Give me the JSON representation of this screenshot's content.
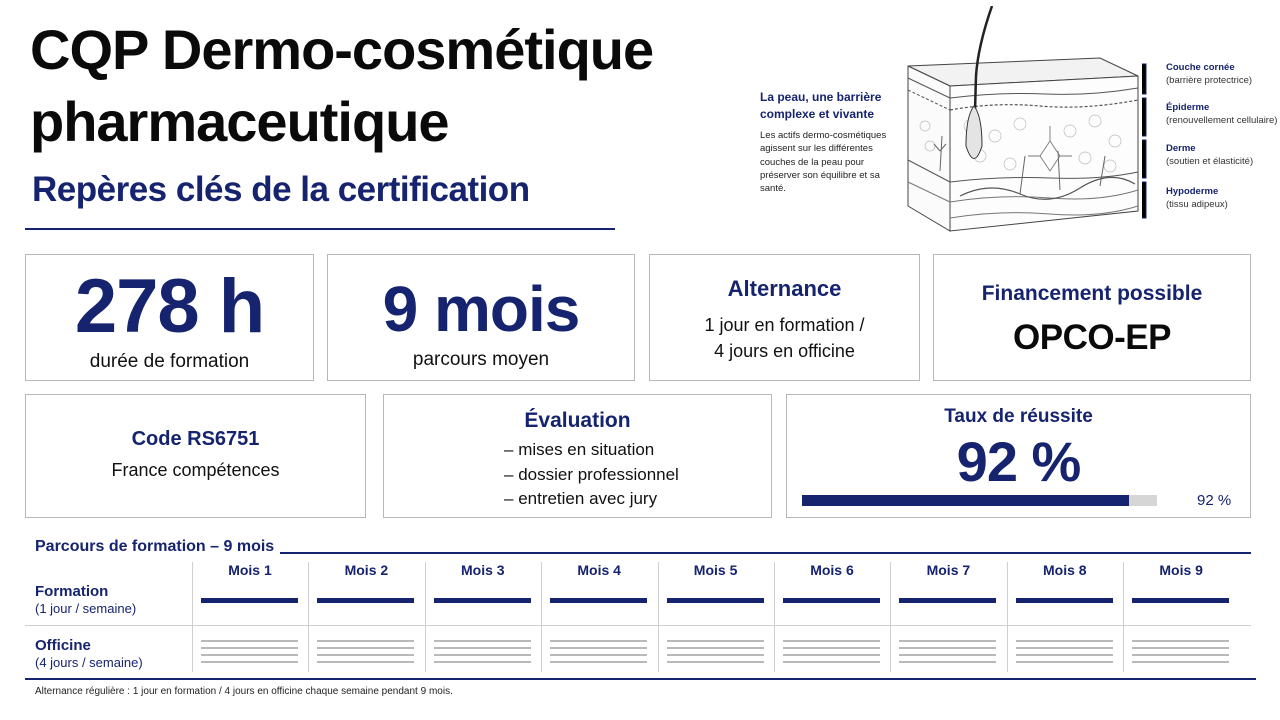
{
  "header": {
    "title_line1": "CQP Dermo-cosmétique",
    "title_line2": "pharmaceutique",
    "subtitle": "Repères clés de la certification"
  },
  "skin_panel": {
    "heading": "La peau, une barrière complexe et vivante",
    "text": "Les actifs dermo-cosmétiques agissent sur les différentes couches de la peau pour préserver son équilibre et sa santé.",
    "layers": [
      {
        "name": "Couche cornée",
        "desc": "(barrière protectrice)"
      },
      {
        "name": "Épiderme",
        "desc": "(renouvellement cellulaire)"
      },
      {
        "name": "Derme",
        "desc": "(soutien et élasticité)"
      },
      {
        "name": "Hypoderme",
        "desc": "(tissu adipeux)"
      }
    ]
  },
  "cards": {
    "hours": {
      "value": "278 h",
      "caption": "durée de formation"
    },
    "months": {
      "value": "9 mois",
      "caption": "parcours moyen"
    },
    "alternance": {
      "heading": "Alternance",
      "line1": "1 jour en formation /",
      "line2": "4 jours en officine"
    },
    "financement": {
      "heading": "Financement possible",
      "value": "OPCO-EP"
    },
    "code": {
      "heading": "Code RS6751",
      "line": "France compétences"
    },
    "evaluation": {
      "heading": "Évaluation",
      "items": [
        "mises en situation",
        "dossier professionnel",
        "entretien avec jury"
      ]
    },
    "reussite": {
      "heading": "Taux de réussite",
      "value": "92 %",
      "small": "92 %",
      "rate": 0.92
    }
  },
  "timeline": {
    "title": "Parcours de formation – 9 mois",
    "months": [
      "Mois 1",
      "Mois 2",
      "Mois 3",
      "Mois 4",
      "Mois 5",
      "Mois 6",
      "Mois 7",
      "Mois 8",
      "Mois 9"
    ],
    "rows": [
      {
        "label": "Formation",
        "sub": "(1 jour / semaine)"
      },
      {
        "label": "Officine",
        "sub": "(4 jours / semaine)"
      }
    ],
    "footnote": "Alternance régulière : 1 jour en formation / 4 jours en officine chaque semaine pendant 9 mois."
  },
  "colors": {
    "accent": "#16236e",
    "track": "#d6d6d6",
    "officine_lines": "#b9b9b9"
  },
  "illustration": "skin-cross-section-with-hair-follicle"
}
